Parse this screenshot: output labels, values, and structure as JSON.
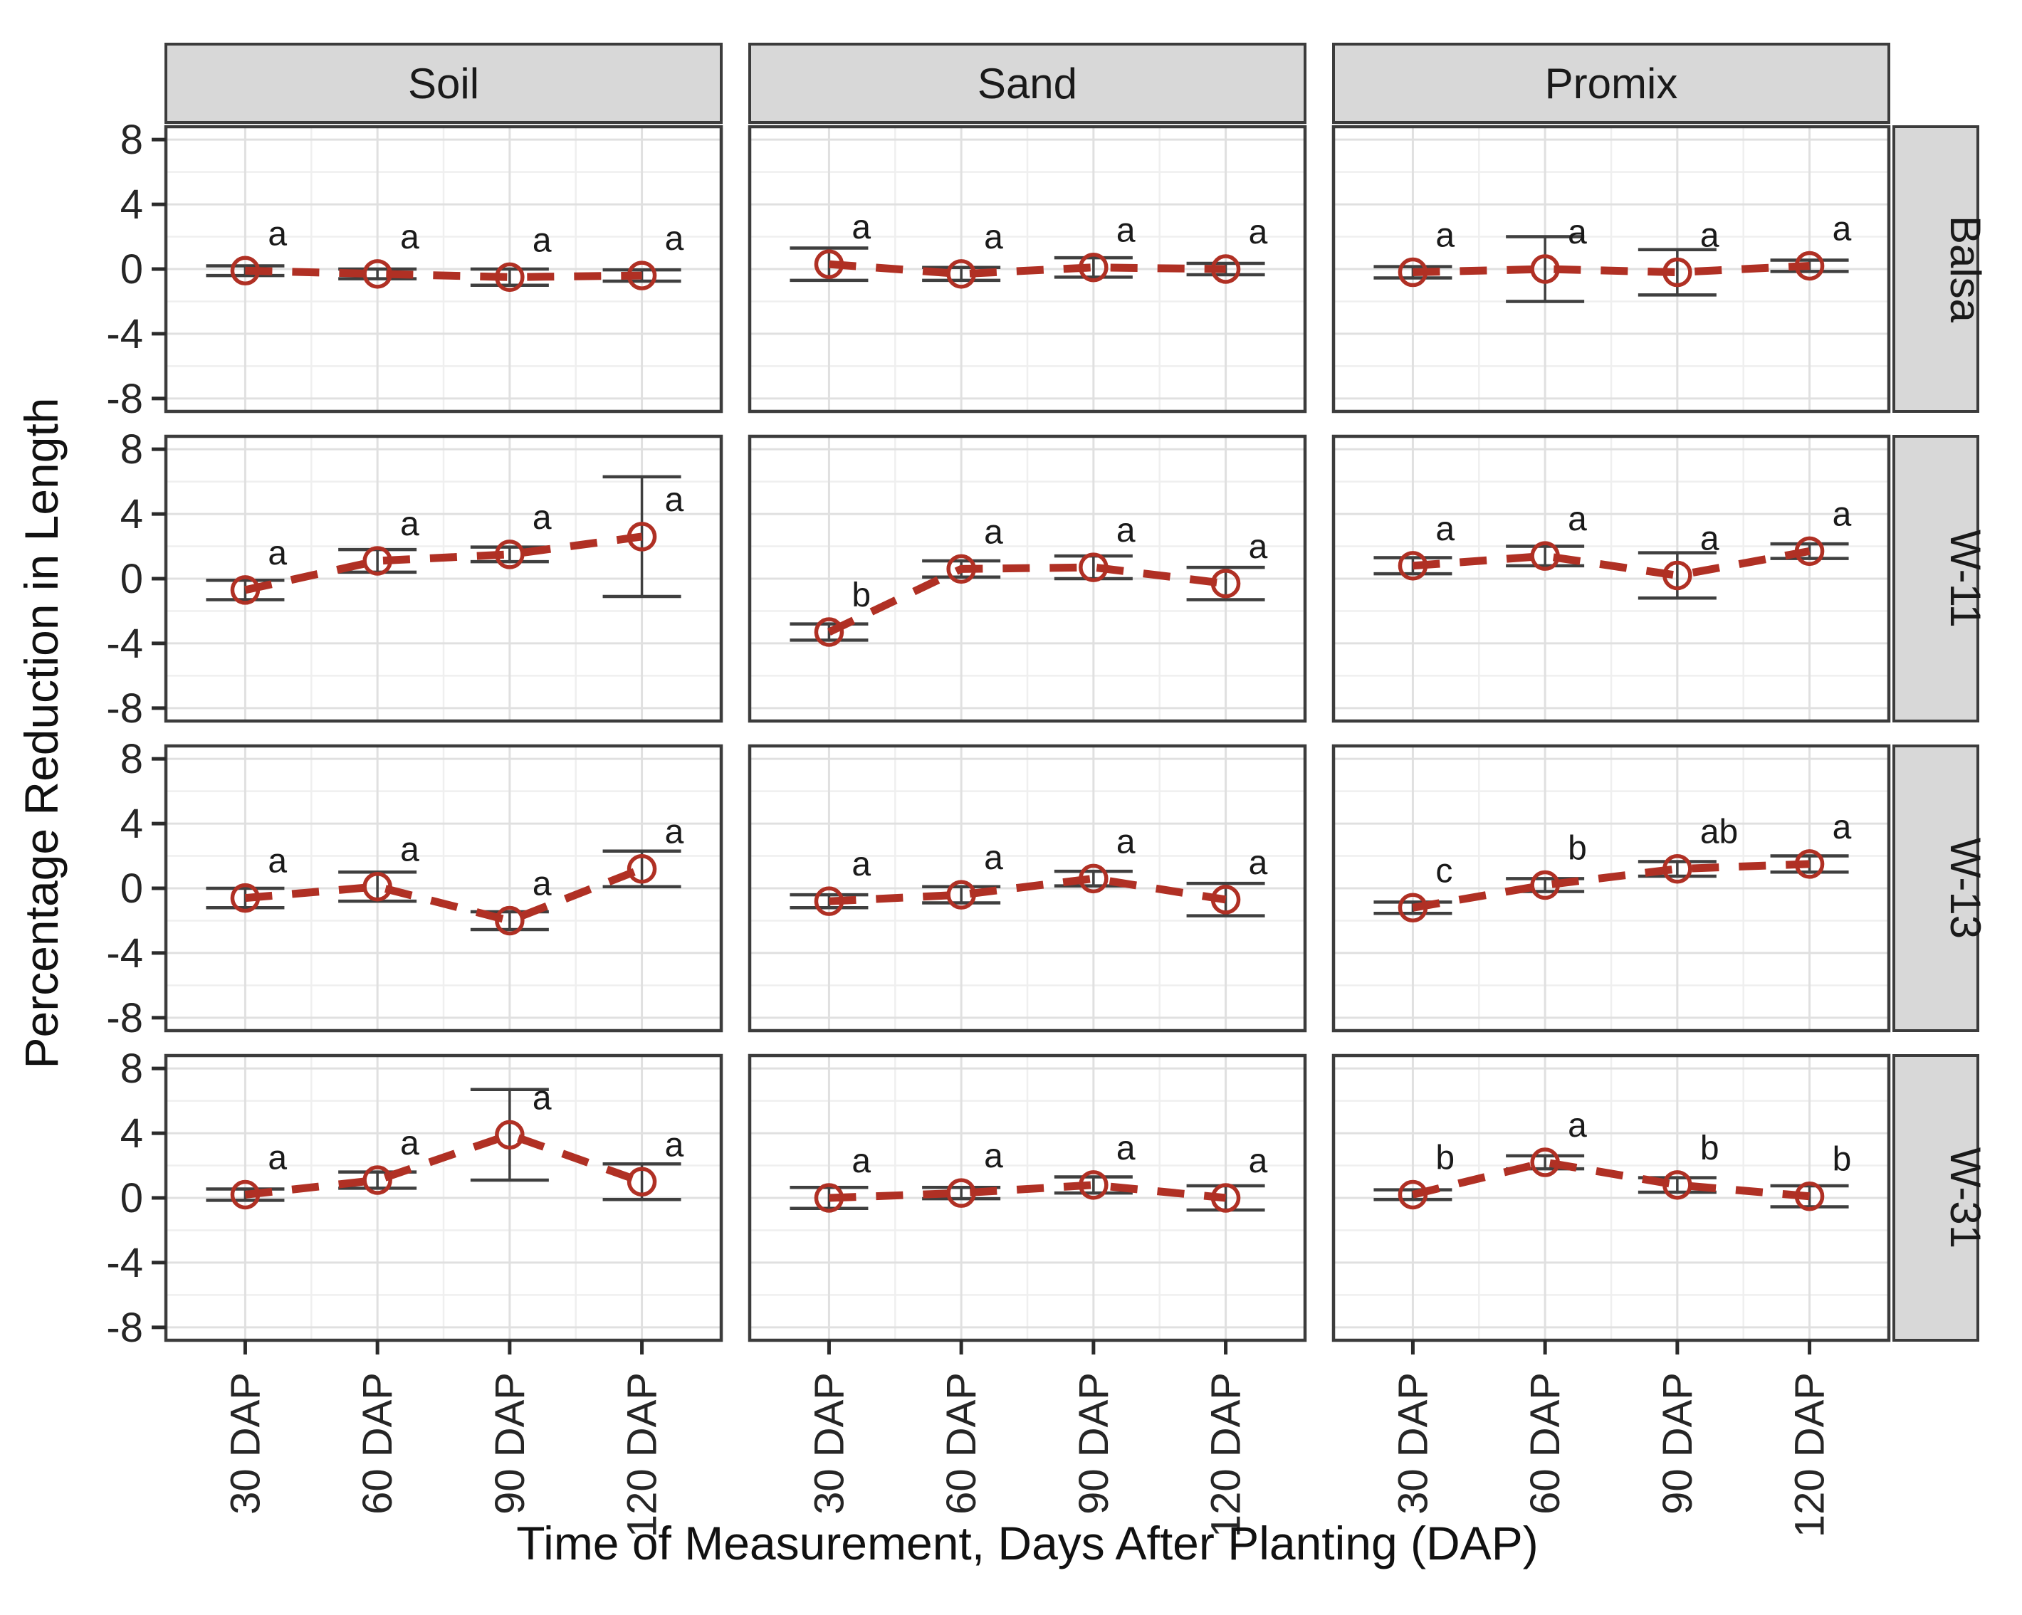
{
  "chart_data": {
    "type": "line",
    "title": "",
    "xlabel": "Time of Measurement, Days After Planting (DAP)",
    "ylabel": "Percentage Reduction in Length",
    "categories": [
      "30 DAP",
      "60 DAP",
      "90 DAP",
      "120 DAP"
    ],
    "yticks": [
      8,
      4,
      0,
      -4,
      -8
    ],
    "yticks_minor": [
      6,
      2,
      -2,
      -6
    ],
    "ylim": [
      -8.8,
      8.8
    ],
    "grid": true,
    "legend_position": "none",
    "facet_columns": [
      "Soil",
      "Sand",
      "Promix"
    ],
    "facet_rows": [
      "Balsa",
      "W-11",
      "W-13",
      "W-31"
    ],
    "style": {
      "line_color": "#B03024",
      "line_style": "dashed",
      "marker": "open-circle",
      "errorbar_color": "#3f3f3f",
      "strip_fill": "#d8d8d8",
      "panel_border": "#3c3c3c",
      "grid_major_color": "#e0e0e0",
      "grid_minor_color": "#efefef",
      "text_color": "#1a1a1a"
    },
    "panels": [
      {
        "row": "Balsa",
        "col": "Soil",
        "means": [
          -0.1,
          -0.3,
          -0.5,
          -0.4
        ],
        "errors": [
          0.3,
          0.3,
          0.5,
          0.35
        ],
        "letters": [
          "a",
          "a",
          "a",
          "a"
        ]
      },
      {
        "row": "Balsa",
        "col": "Sand",
        "means": [
          0.3,
          -0.3,
          0.1,
          0.0
        ],
        "errors": [
          1.0,
          0.4,
          0.6,
          0.35
        ],
        "letters": [
          "a",
          "a",
          "a",
          "a"
        ]
      },
      {
        "row": "Balsa",
        "col": "Promix",
        "means": [
          -0.2,
          0.0,
          -0.2,
          0.2
        ],
        "errors": [
          0.35,
          2.0,
          1.4,
          0.35
        ],
        "letters": [
          "a",
          "a",
          "a",
          "a"
        ]
      },
      {
        "row": "W-11",
        "col": "Soil",
        "means": [
          -0.7,
          1.1,
          1.5,
          2.6
        ],
        "errors": [
          0.6,
          0.7,
          0.45,
          3.7
        ],
        "letters": [
          "a",
          "a",
          "a",
          "a"
        ]
      },
      {
        "row": "W-11",
        "col": "Sand",
        "means": [
          -3.3,
          0.6,
          0.7,
          -0.3
        ],
        "errors": [
          0.5,
          0.5,
          0.7,
          1.0
        ],
        "letters": [
          "b",
          "a",
          "a",
          "a"
        ]
      },
      {
        "row": "W-11",
        "col": "Promix",
        "means": [
          0.8,
          1.4,
          0.2,
          1.7
        ],
        "errors": [
          0.5,
          0.6,
          1.4,
          0.45
        ],
        "letters": [
          "a",
          "a",
          "a",
          "a"
        ]
      },
      {
        "row": "W-13",
        "col": "Soil",
        "means": [
          -0.6,
          0.1,
          -2.0,
          1.2
        ],
        "errors": [
          0.6,
          0.9,
          0.55,
          1.1
        ],
        "letters": [
          "a",
          "a",
          "a",
          "a"
        ]
      },
      {
        "row": "W-13",
        "col": "Sand",
        "means": [
          -0.8,
          -0.4,
          0.6,
          -0.7
        ],
        "errors": [
          0.4,
          0.5,
          0.45,
          1.0
        ],
        "letters": [
          "a",
          "a",
          "a",
          "a"
        ]
      },
      {
        "row": "W-13",
        "col": "Promix",
        "means": [
          -1.2,
          0.2,
          1.2,
          1.5
        ],
        "errors": [
          0.35,
          0.4,
          0.45,
          0.5
        ],
        "letters": [
          "c",
          "b",
          "ab",
          "a"
        ]
      },
      {
        "row": "W-31",
        "col": "Soil",
        "means": [
          0.2,
          1.1,
          3.9,
          1.0
        ],
        "errors": [
          0.35,
          0.5,
          2.8,
          1.1
        ],
        "letters": [
          "a",
          "a",
          "a",
          "a"
        ]
      },
      {
        "row": "W-31",
        "col": "Sand",
        "means": [
          0.0,
          0.3,
          0.8,
          0.0
        ],
        "errors": [
          0.65,
          0.35,
          0.5,
          0.75
        ],
        "letters": [
          "a",
          "a",
          "a",
          "a"
        ]
      },
      {
        "row": "W-31",
        "col": "Promix",
        "means": [
          0.2,
          2.2,
          0.8,
          0.1
        ],
        "errors": [
          0.3,
          0.4,
          0.45,
          0.65
        ],
        "letters": [
          "b",
          "a",
          "b",
          "b"
        ]
      }
    ]
  }
}
